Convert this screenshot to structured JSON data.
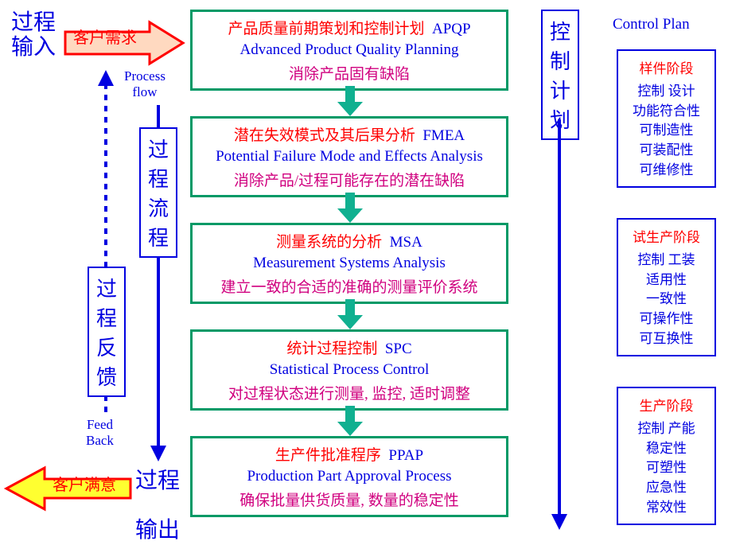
{
  "input_label": "过程\n输入",
  "output_label": "过程\n输出",
  "cust_req": "客户需求",
  "cust_sat": "客户满意",
  "process_flow_label": "Process\nflow",
  "flow_box_label": "过程流程",
  "feedback_box_label": "过程反馈",
  "feedback_en": "Feed\nBack",
  "control_plan_box": "控制计划",
  "control_plan_header": "Control Plan",
  "boxes": {
    "b1": {
      "l1_cn": "产品质量前期策划和控制计划",
      "l1_ab": "APQP",
      "l2": "Advanced Product Quality Planning",
      "l3": "消除产品固有缺陷"
    },
    "b2": {
      "l1_cn": "潜在失效模式及其后果分析",
      "l1_ab": "FMEA",
      "l2": "Potential Failure Mode and Effects Analysis",
      "l3": "消除产品/过程可能存在的潜在缺陷"
    },
    "b3": {
      "l1_cn": "测量系统的分析",
      "l1_ab": "MSA",
      "l2": "Measurement Systems Analysis",
      "l3": "建立一致的合适的准确的测量评价系统"
    },
    "b4": {
      "l1_cn": "统计过程控制",
      "l1_ab": "SPC",
      "l2": "Statistical Process Control",
      "l3": "对过程状态进行测量, 监控, 适时调整"
    },
    "b5": {
      "l1_cn": "生产件批准程序",
      "l1_ab": "PPAP",
      "l2": "Production Part Approval Process",
      "l3": "确保批量供货质量, 数量的稳定性"
    }
  },
  "cp": {
    "b1": {
      "t": "样件阶段",
      "r": "控制  设计\n功能符合性\n可制造性\n可装配性\n可维修性"
    },
    "b2": {
      "t": "试生产阶段",
      "r": "控制  工装\n适用性\n一致性\n可操作性\n可互换性"
    },
    "b3": {
      "t": "生产阶段",
      "r": "控制  产能\n稳定性\n可塑性\n应急性\n常效性"
    }
  },
  "colors": {
    "box_border": "#009966",
    "blue": "#0000e0",
    "red": "#ff0000",
    "magenta": "#d0007f",
    "arrow_green": "#10b090",
    "arrow_req_fill": "#ffd9c0",
    "arrow_sat_fill": "#ffff30"
  }
}
